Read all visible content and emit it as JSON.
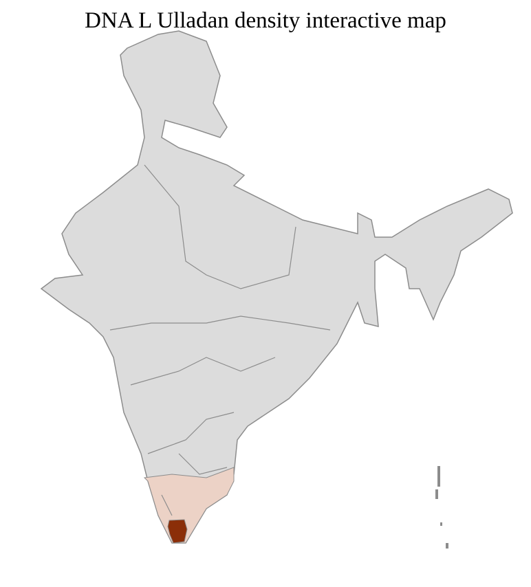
{
  "title": "DNA L Ulladan density interactive map",
  "colors": {
    "base": "#dcdcdc",
    "border": "#8c8c8c",
    "district_line": "#ffffff",
    "low_density": "#ecd2c6",
    "high_density": "#8b2e08"
  },
  "regions": [
    {
      "name": "India (no data)",
      "level": "none"
    },
    {
      "name": "Southern districts",
      "level": "low"
    },
    {
      "name": "Core districts",
      "level": "high"
    }
  ]
}
